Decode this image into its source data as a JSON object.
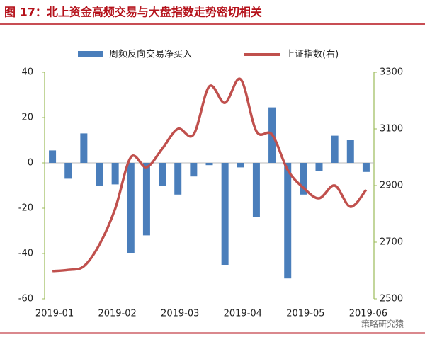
{
  "chart_data": {
    "type": "bar_line",
    "title": "图 17：北上资金高频交易与大盘指数走势密切相关",
    "categories": [
      "2019-01",
      null,
      null,
      null,
      "2019-02",
      null,
      null,
      null,
      "2019-03",
      null,
      null,
      null,
      "2019-04",
      null,
      null,
      null,
      "2019-05",
      null,
      null,
      null,
      "2019-06"
    ],
    "series": [
      {
        "name": "周频反向交易净买入",
        "color": "#4a7ebb",
        "axis": "y",
        "values": [
          5.5,
          -7,
          13,
          -10,
          -9.5,
          -40,
          -32,
          -10,
          -14,
          -6,
          -1,
          -45,
          -2,
          -24,
          24.5,
          -51,
          -14,
          -3.5,
          12,
          10,
          -4
        ]
      },
      {
        "name": "上证指数(右)",
        "color": "#c0504d",
        "axis": "y2",
        "values": [
          2598,
          2602,
          2615,
          2692,
          2818,
          3000,
          2965,
          3030,
          3100,
          3080,
          3250,
          3192,
          3275,
          3092,
          3080,
          2955,
          2892,
          2855,
          2900,
          2825,
          2885
        ]
      }
    ],
    "ylim": [
      -60,
      40
    ],
    "yticks": [
      -60,
      -40,
      -20,
      0,
      20,
      40
    ],
    "y2lim": [
      2500,
      3300
    ],
    "y2ticks": [
      2500,
      2700,
      2900,
      3100,
      3300
    ],
    "watermark": "策略研究猿"
  }
}
